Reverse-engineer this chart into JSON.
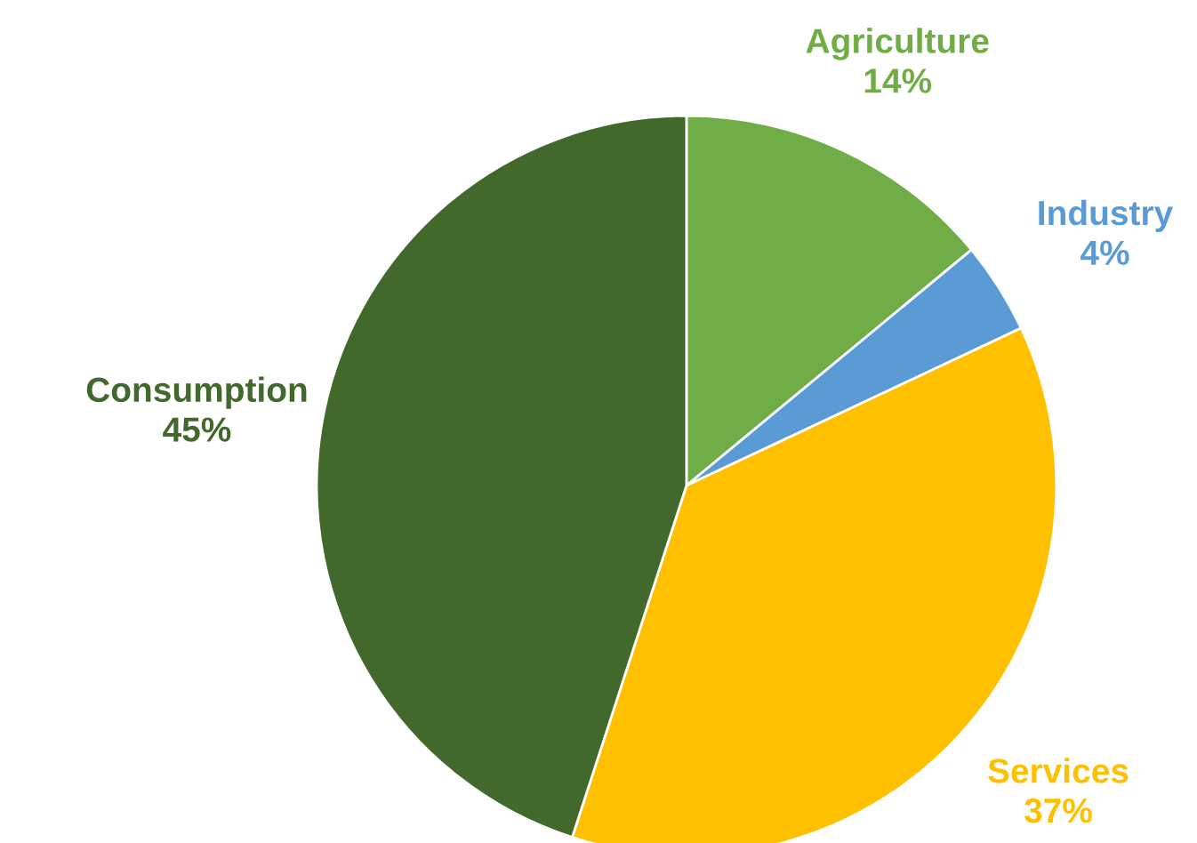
{
  "chart_data": {
    "type": "pie",
    "categories": [
      "Agriculture",
      "Industry",
      "Services",
      "Consumption"
    ],
    "values": [
      14,
      4,
      37,
      45
    ],
    "value_labels": [
      "14%",
      "4%",
      "37%",
      "45%"
    ],
    "colors": [
      "#70ad47",
      "#5b9bd5",
      "#ffc000",
      "#43682b"
    ]
  }
}
